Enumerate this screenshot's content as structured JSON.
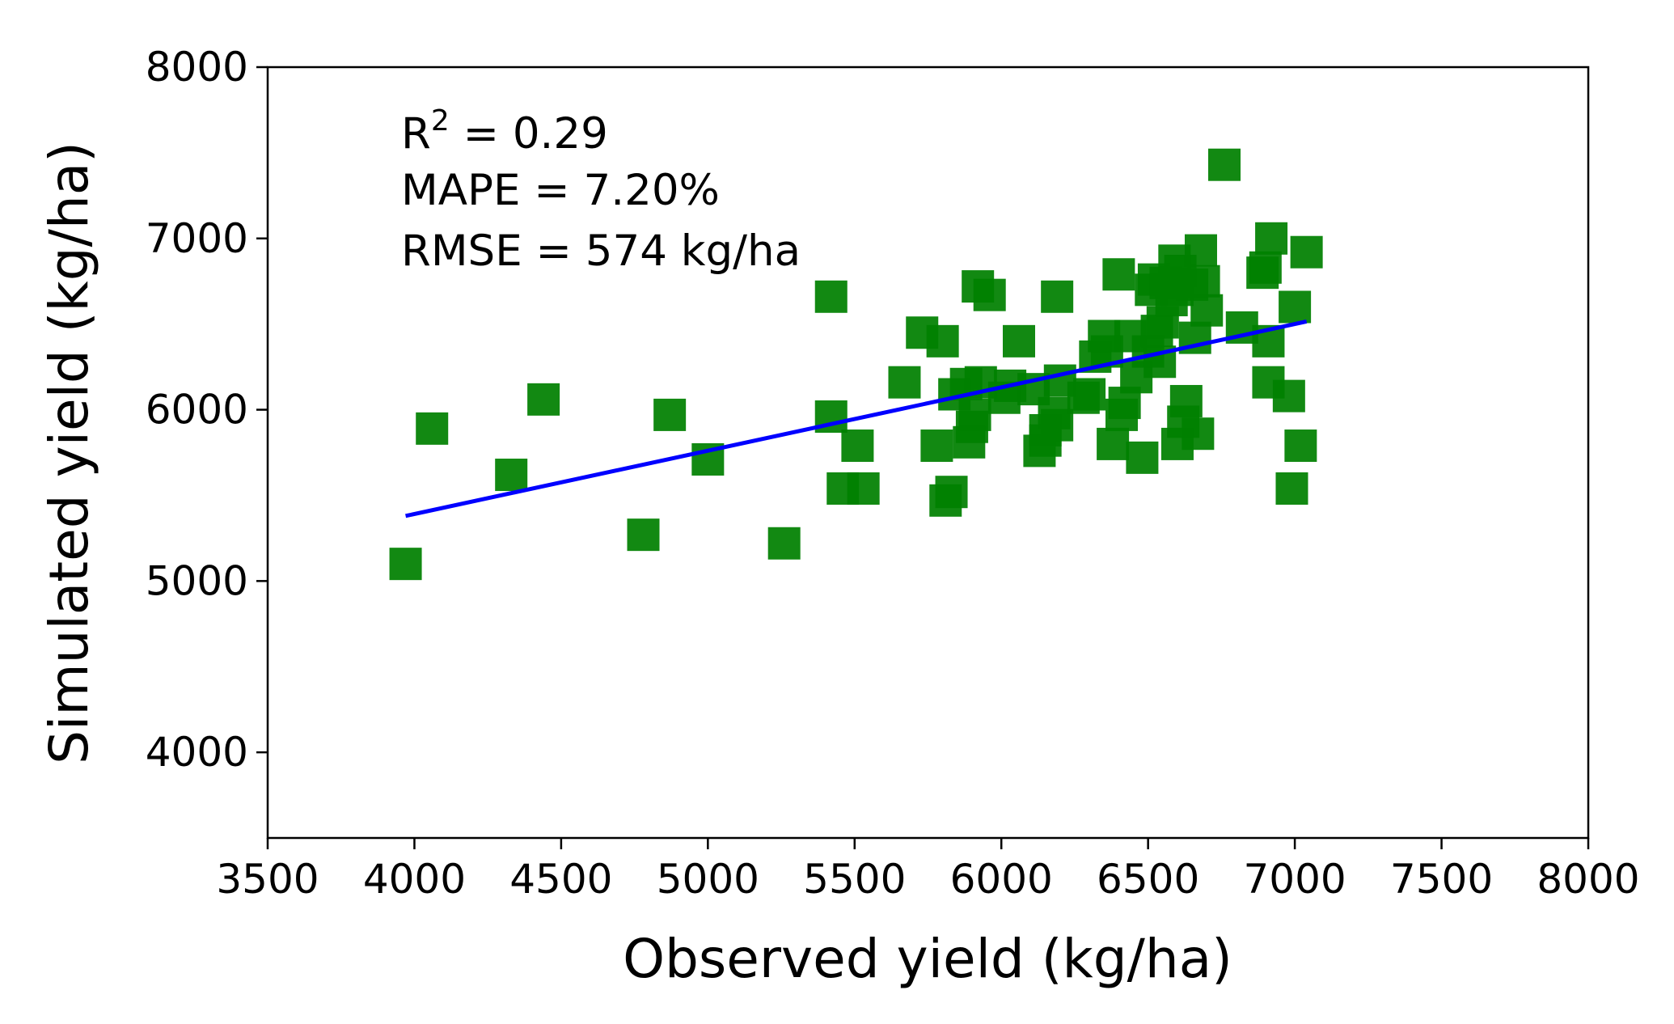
{
  "chart_data": {
    "type": "scatter",
    "xlabel": "Observed yield (kg/ha)",
    "ylabel": "Simulated yield (kg/ha)",
    "xlim": [
      3500,
      8000
    ],
    "ylim": [
      3500,
      8000
    ],
    "xticks": [
      3500,
      4000,
      4500,
      5000,
      5500,
      6000,
      6500,
      7000,
      7500,
      8000
    ],
    "yticks": [
      4000,
      5000,
      6000,
      7000,
      8000
    ],
    "xtick_labels": [
      "3500",
      "4000",
      "4500",
      "5000",
      "5500",
      "6000",
      "6500",
      "7000",
      "7500",
      "8000"
    ],
    "ytick_labels": [
      "4000",
      "5000",
      "6000",
      "7000",
      "8000"
    ],
    "annotations": {
      "r2_label": "R",
      "r2_sup": "2",
      "r2_value": " = 0.29",
      "mape": "MAPE = 7.20%",
      "rmse": "RMSE = 574 kg/ha"
    },
    "series": [
      {
        "name": "observations",
        "marker": "square",
        "color": "#008000",
        "points": [
          [
            3970,
            5100
          ],
          [
            4060,
            5890
          ],
          [
            4330,
            5620
          ],
          [
            4440,
            6060
          ],
          [
            4780,
            5270
          ],
          [
            4870,
            5970
          ],
          [
            5000,
            5710
          ],
          [
            5260,
            5220
          ],
          [
            5420,
            6660
          ],
          [
            5420,
            5960
          ],
          [
            5460,
            5540
          ],
          [
            5510,
            5790
          ],
          [
            5530,
            5540
          ],
          [
            5670,
            6160
          ],
          [
            5730,
            6450
          ],
          [
            5780,
            5790
          ],
          [
            5800,
            6400
          ],
          [
            5810,
            5470
          ],
          [
            5830,
            5520
          ],
          [
            5840,
            6090
          ],
          [
            5880,
            6150
          ],
          [
            5890,
            5810
          ],
          [
            5900,
            5900
          ],
          [
            5910,
            5970
          ],
          [
            5920,
            6720
          ],
          [
            5930,
            6160
          ],
          [
            5960,
            6670
          ],
          [
            6010,
            6070
          ],
          [
            6030,
            6140
          ],
          [
            6060,
            6400
          ],
          [
            6110,
            6120
          ],
          [
            6130,
            5760
          ],
          [
            6150,
            5820
          ],
          [
            6150,
            5880
          ],
          [
            6180,
            5980
          ],
          [
            6190,
            5910
          ],
          [
            6190,
            6660
          ],
          [
            6200,
            6170
          ],
          [
            6280,
            6070
          ],
          [
            6300,
            6090
          ],
          [
            6320,
            6310
          ],
          [
            6350,
            6430
          ],
          [
            6360,
            6340
          ],
          [
            6380,
            5800
          ],
          [
            6400,
            6790
          ],
          [
            6410,
            5970
          ],
          [
            6420,
            6040
          ],
          [
            6440,
            6430
          ],
          [
            6460,
            6190
          ],
          [
            6480,
            5720
          ],
          [
            6500,
            6340
          ],
          [
            6510,
            6700
          ],
          [
            6520,
            6760
          ],
          [
            6530,
            6460
          ],
          [
            6540,
            6280
          ],
          [
            6550,
            6510
          ],
          [
            6560,
            6740
          ],
          [
            6580,
            6640
          ],
          [
            6590,
            6870
          ],
          [
            6600,
            6700
          ],
          [
            6600,
            5800
          ],
          [
            6610,
            6810
          ],
          [
            6620,
            5930
          ],
          [
            6630,
            6050
          ],
          [
            6650,
            6730
          ],
          [
            6660,
            6420
          ],
          [
            6670,
            5860
          ],
          [
            6680,
            6930
          ],
          [
            6690,
            6750
          ],
          [
            6700,
            6580
          ],
          [
            6760,
            7430
          ],
          [
            6820,
            6480
          ],
          [
            6890,
            6800
          ],
          [
            6900,
            6830
          ],
          [
            6910,
            6400
          ],
          [
            6910,
            6160
          ],
          [
            6920,
            7000
          ],
          [
            6980,
            6080
          ],
          [
            6990,
            5540
          ],
          [
            7000,
            6600
          ],
          [
            7020,
            5790
          ],
          [
            7040,
            6920
          ]
        ]
      },
      {
        "name": "regression line",
        "color": "#0000ff",
        "x": [
          3970,
          7040
        ],
        "y": [
          5380,
          6515
        ]
      }
    ]
  }
}
